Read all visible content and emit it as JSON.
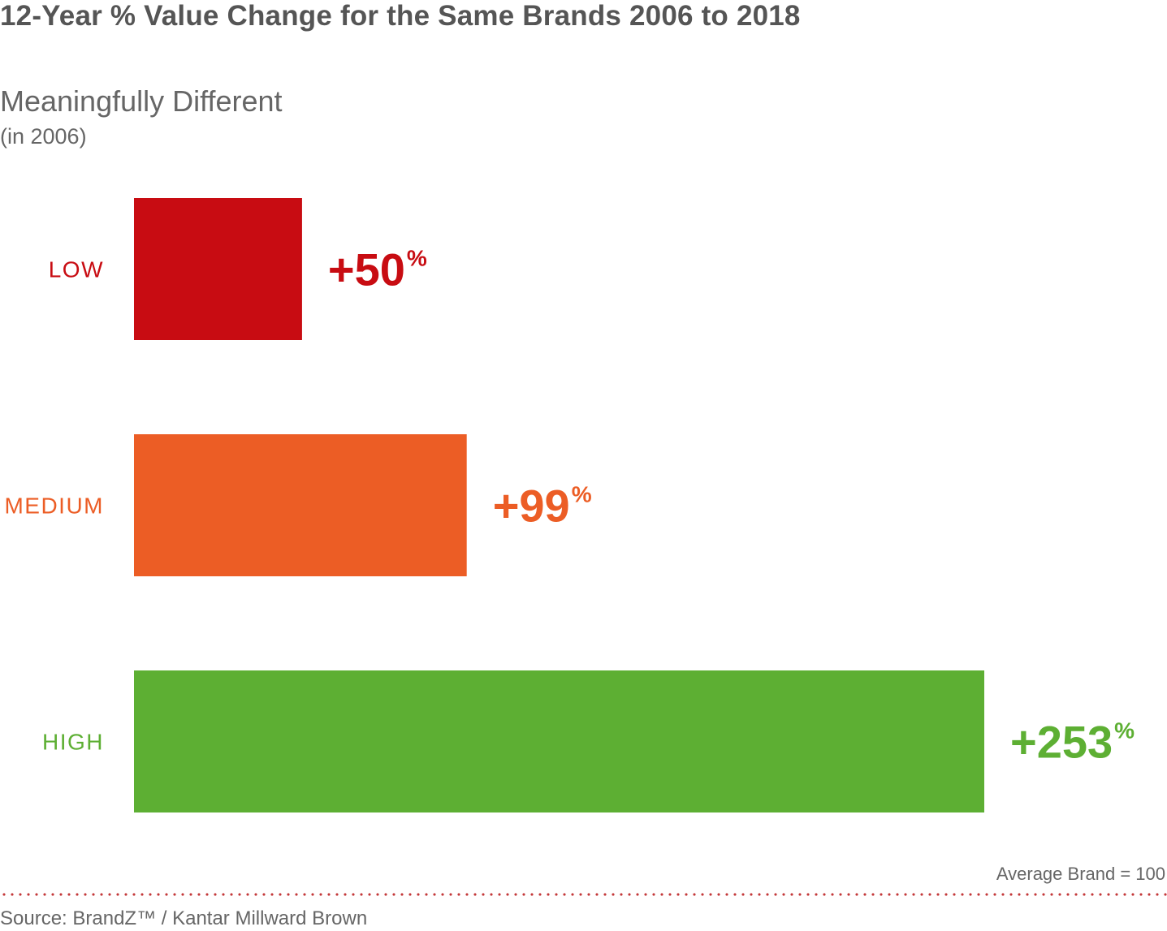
{
  "title": "12-Year % Value Change for the Same Brands 2006 to 2018",
  "subtitle": "Meaningfully Different",
  "subtitle_note": "(in 2006)",
  "note": "Average Brand = 100",
  "source": "Source: BrandZ™ / Kantar Millward Brown",
  "chart_data": {
    "type": "bar",
    "orientation": "horizontal",
    "categories": [
      "LOW",
      "MEDIUM",
      "HIGH"
    ],
    "values": [
      50,
      99,
      253
    ],
    "value_labels": [
      "+50",
      "+99",
      "+253"
    ],
    "value_suffix": "%",
    "colors": [
      "#c80c12",
      "#ec5d25",
      "#5daf33"
    ],
    "xlim": [
      0,
      253
    ],
    "grid": false,
    "legend": "none"
  }
}
